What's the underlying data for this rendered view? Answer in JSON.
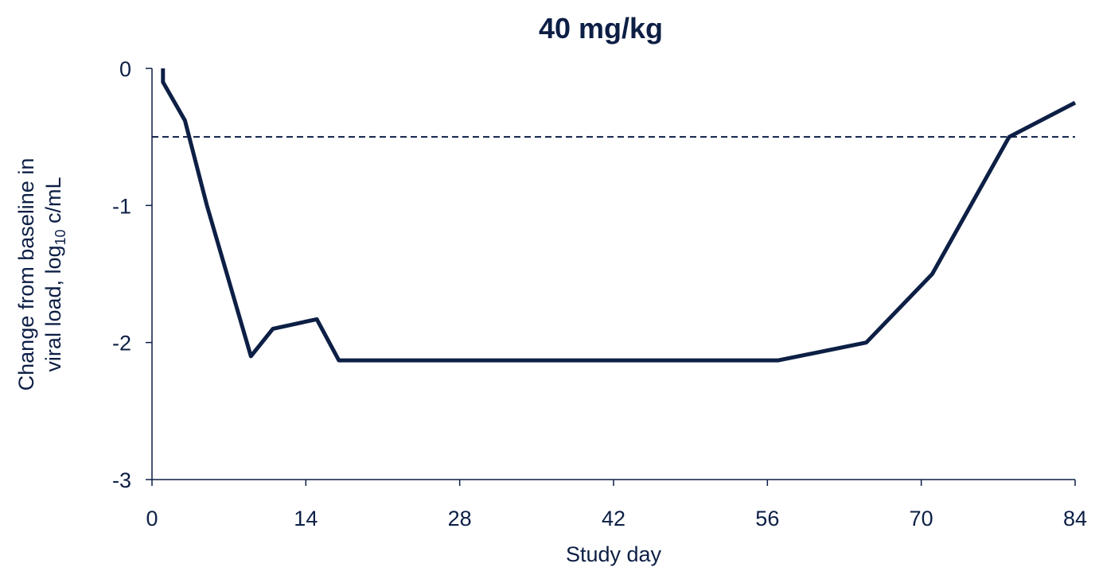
{
  "chart_data": {
    "type": "line",
    "title": "40 mg/kg",
    "xlabel": "Study day",
    "ylabel_line1": "Change from baseline in",
    "ylabel_line2_prefix": "viral load, log",
    "ylabel_line2_subscript": "10",
    "ylabel_line2_suffix": " c/mL",
    "xlim": [
      0,
      84
    ],
    "ylim": [
      -3,
      0
    ],
    "xticks": [
      0,
      14,
      28,
      42,
      56,
      70,
      84
    ],
    "yticks": [
      0,
      -1,
      -2,
      -3
    ],
    "xtick_labels": [
      "0",
      "14",
      "28",
      "42",
      "56",
      "70",
      "84"
    ],
    "ytick_labels": [
      "0",
      "-1",
      "-2",
      "-3"
    ],
    "grid": false,
    "reference_line": {
      "y": -0.5,
      "style": "dashed"
    },
    "series": [
      {
        "color": "#0d1f45",
        "x": [
          1,
          1,
          3,
          5,
          9,
          11,
          15,
          17,
          57,
          65,
          71,
          78,
          84
        ],
        "y": [
          0,
          -0.1,
          -0.38,
          -1.0,
          -2.1,
          -1.9,
          -1.83,
          -2.13,
          -2.13,
          -2.0,
          -1.5,
          -0.5,
          -0.25
        ]
      }
    ]
  }
}
